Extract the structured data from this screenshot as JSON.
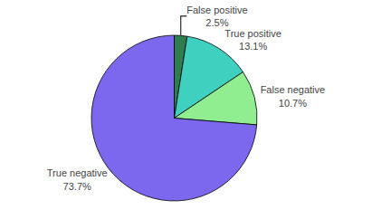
{
  "chart_data": {
    "type": "pie",
    "categories": [
      "False positive",
      "True positive",
      "False negative",
      "True negative"
    ],
    "values": [
      2.5,
      13.1,
      10.7,
      73.7
    ],
    "value_labels": [
      "2.5%",
      "13.1%",
      "10.7%",
      "73.7%"
    ],
    "data_labels": true,
    "colors": [
      "#2e7d4f",
      "#40d0c0",
      "#90ee90",
      "#7b68ee"
    ]
  }
}
